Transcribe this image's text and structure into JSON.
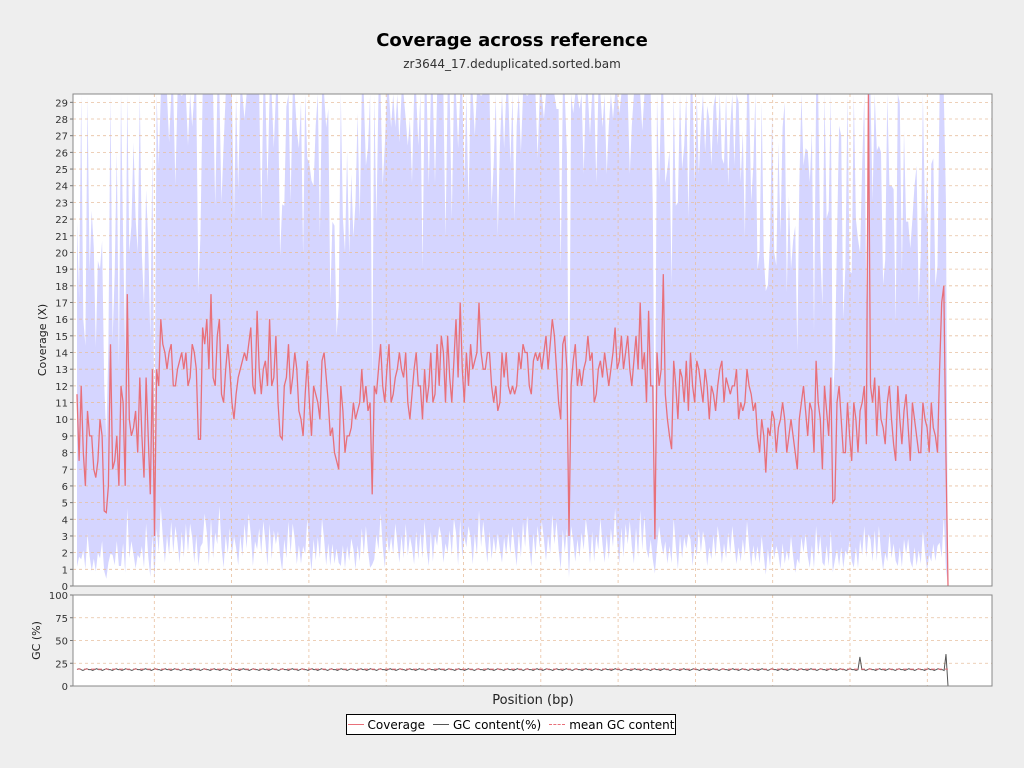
{
  "title": "Coverage across reference",
  "subtitle": "zr3644_17.deduplicated.sorted.bam",
  "colors": {
    "coverage": "#e8707a",
    "coverage_band": "#d5d5ff",
    "gc": "#555555",
    "mean_gc": "#e8707a",
    "grid": "#e8c0a0"
  },
  "chart_data": [
    {
      "type": "line",
      "ylabel": "Coverage (X)",
      "xlabel": "",
      "ylim": [
        0,
        29.5
      ],
      "yticks": [
        0,
        1,
        2,
        3,
        4,
        5,
        6,
        7,
        8,
        9,
        10,
        11,
        12,
        13,
        14,
        15,
        16,
        17,
        18,
        19,
        20,
        21,
        22,
        23,
        24,
        25,
        26,
        27,
        28,
        29
      ],
      "grid": true,
      "series": [
        {
          "name": "Coverage",
          "values": [
            11.5,
            7.5,
            12,
            8,
            6,
            10.5,
            9,
            9,
            7,
            6.5,
            7.5,
            10,
            9,
            4.5,
            4.4,
            6,
            14.5,
            7,
            7.5,
            9,
            6,
            12,
            11,
            6,
            17.5,
            10,
            9,
            9.5,
            10.5,
            8,
            12.5,
            9,
            6.5,
            12.5,
            9,
            5.5,
            13,
            3,
            13,
            12,
            16,
            14.5,
            14,
            13,
            14,
            14.5,
            12,
            12,
            13,
            13.5,
            14,
            13,
            14,
            12,
            12.5,
            14.5,
            14,
            13,
            8.8,
            8.8,
            15.5,
            14.5,
            16,
            13,
            17.5,
            12.5,
            12,
            15,
            16,
            11.5,
            11,
            13,
            14.5,
            13,
            11,
            10,
            11.5,
            12.5,
            13,
            13.5,
            14,
            13.5,
            14.5,
            15.5,
            12,
            11.5,
            16.5,
            13,
            11.5,
            13,
            13.5,
            12,
            16,
            12,
            12.5,
            15,
            11,
            9,
            8.8,
            12,
            12.5,
            14.5,
            11.5,
            12.5,
            14,
            13,
            10.5,
            10,
            9,
            11.5,
            13.5,
            11,
            9,
            12,
            11.5,
            11,
            10,
            13.5,
            14,
            12.5,
            11,
            9,
            9.5,
            8,
            7.5,
            7,
            12,
            10.5,
            8,
            9,
            9,
            9.5,
            11,
            10,
            10.5,
            11,
            13,
            11,
            12,
            10.5,
            11,
            5.5,
            12,
            11.5,
            13,
            14.5,
            12,
            11,
            13,
            14.5,
            11,
            11.5,
            12.5,
            13,
            14,
            13,
            12.5,
            14,
            11,
            10,
            11.5,
            13,
            14,
            12,
            12,
            10,
            13,
            11,
            12,
            14,
            11,
            11.5,
            14.5,
            12,
            15,
            14,
            11,
            15,
            12.5,
            11,
            13.5,
            16,
            12.5,
            17,
            13,
            11,
            14,
            12,
            14.5,
            13,
            13.5,
            14,
            17,
            14,
            13,
            13,
            14,
            14,
            12,
            11,
            12,
            10.5,
            11,
            14,
            12.5,
            14,
            12,
            11.5,
            12,
            11.5,
            12,
            14,
            13,
            14.5,
            14,
            14,
            12,
            11.5,
            13.5,
            14,
            13.5,
            14,
            13,
            14,
            15,
            13,
            14.5,
            16,
            15,
            13,
            11,
            10,
            14.5,
            15,
            13,
            3,
            12,
            13.5,
            14.5,
            12,
            13,
            12,
            13,
            13.5,
            15,
            13.5,
            14,
            11,
            11.5,
            13,
            13.5,
            12.5,
            14,
            13,
            12,
            13,
            14,
            15.5,
            13,
            13.5,
            15,
            13,
            14,
            15,
            13,
            12,
            13.5,
            15,
            13,
            17,
            13,
            14,
            11,
            16.5,
            12,
            12,
            2.8,
            14,
            12,
            13,
            18.7,
            11.5,
            10,
            9,
            8.2,
            13.5,
            12,
            10,
            13,
            12.5,
            11,
            13.5,
            10.5,
            14,
            12,
            11,
            13.5,
            13,
            12,
            11,
            13,
            12,
            10,
            12,
            11.5,
            10.5,
            12,
            13,
            13.5,
            11,
            12.5,
            12,
            11.5,
            12,
            12,
            13,
            10,
            11,
            10.5,
            11,
            13,
            12,
            11.5,
            10.5,
            11,
            9,
            8,
            10,
            9,
            6.8,
            9.5,
            9,
            10.5,
            10,
            8,
            9.5,
            10,
            11,
            10,
            8,
            9,
            10,
            9,
            8,
            7,
            10,
            11,
            12,
            10.5,
            9,
            11,
            10.5,
            8,
            13.5,
            11,
            10,
            7,
            12,
            10.5,
            9,
            12.5,
            5,
            5.2,
            11,
            12,
            10,
            8,
            8,
            11,
            9,
            7.5,
            11,
            10,
            8,
            10.5,
            11,
            12,
            8.5,
            31,
            12,
            11,
            12.5,
            9,
            12,
            10,
            9.5,
            8.5,
            11,
            12,
            10,
            8.5,
            7.5,
            12,
            10,
            8.5,
            10.5,
            11.5,
            9.5,
            7.5,
            11,
            10,
            9,
            8,
            8,
            11,
            10,
            9.5,
            8,
            11,
            9.5,
            9,
            8,
            13,
            17,
            18,
            8,
            0
          ]
        }
      ]
    },
    {
      "type": "line",
      "ylabel": "GC (%)",
      "xlabel": "Position (bp)",
      "ylim": [
        0,
        100
      ],
      "yticks": [
        0,
        25,
        50,
        75,
        100
      ],
      "grid": true,
      "series": [
        {
          "name": "GC content(%)",
          "values": [
            18,
            19,
            18,
            17,
            18,
            19,
            18,
            18,
            17,
            18,
            19,
            18,
            18,
            17,
            18,
            19,
            18,
            18,
            17,
            18,
            19,
            18,
            18,
            17,
            18,
            19,
            18,
            18,
            17,
            18,
            19,
            18,
            18,
            17,
            18,
            19,
            18,
            18,
            17,
            18,
            19,
            18,
            18,
            17,
            18,
            19,
            18,
            18,
            17,
            18,
            19,
            18,
            18,
            17,
            18,
            19,
            18,
            18,
            17,
            18,
            19,
            18,
            18,
            17,
            18,
            19,
            18,
            18,
            17,
            18,
            19,
            18,
            18,
            17,
            18,
            19,
            18,
            18,
            17,
            18,
            19,
            18,
            18,
            17,
            18,
            19,
            18,
            18,
            17,
            18,
            19,
            18,
            18,
            17,
            18,
            19,
            18,
            18,
            17,
            18,
            19,
            18,
            18,
            17,
            18,
            19,
            18,
            18,
            17,
            18,
            19,
            18,
            18,
            17,
            18,
            19,
            18,
            18,
            17,
            18,
            19,
            18,
            18,
            17,
            18,
            19,
            18,
            18,
            17,
            18,
            19,
            18,
            18,
            17,
            18,
            19,
            18,
            18,
            17,
            18,
            19,
            18,
            18,
            17,
            18,
            19,
            18,
            18,
            17,
            18,
            19,
            18,
            18,
            17,
            18,
            19,
            18,
            18,
            17,
            18,
            19,
            18,
            18,
            17,
            18,
            19,
            18,
            18,
            17,
            18,
            19,
            18,
            18,
            17,
            18,
            19,
            18,
            18,
            17,
            18,
            19,
            18,
            18,
            17,
            18,
            19,
            18,
            18,
            17,
            18,
            19,
            18,
            18,
            17,
            18,
            19,
            18,
            18,
            17,
            18,
            19,
            18,
            18,
            17,
            18,
            19,
            18,
            18,
            17,
            18,
            19,
            18,
            18,
            17,
            18,
            19,
            18,
            18,
            17,
            18,
            19,
            18,
            18,
            17,
            18,
            19,
            18,
            18,
            17,
            18,
            19,
            18,
            18,
            17,
            18,
            19,
            18,
            18,
            17,
            18,
            19,
            18,
            18,
            17,
            18,
            19,
            18,
            18,
            17,
            18,
            19,
            18,
            18,
            17,
            18,
            19,
            18,
            18,
            17,
            18,
            19,
            18,
            18,
            17,
            18,
            19,
            18,
            18,
            17,
            18,
            19,
            18,
            18,
            17,
            18,
            19,
            18,
            18,
            17,
            18,
            19,
            18,
            18,
            17,
            18,
            19,
            18,
            18,
            17,
            18,
            19,
            18,
            18,
            17,
            18,
            19,
            18,
            18,
            17,
            18,
            19,
            18,
            18,
            17,
            18,
            19,
            18,
            18,
            17,
            18,
            19,
            18,
            18,
            17,
            18,
            19,
            18,
            18,
            17,
            18,
            19,
            18,
            18,
            17,
            18,
            19,
            18,
            18,
            17,
            18,
            19,
            18,
            18,
            17,
            18,
            19,
            18,
            18,
            17,
            18,
            19,
            18,
            18,
            17,
            18,
            19,
            18,
            18,
            17,
            18,
            19,
            18,
            18,
            17,
            18,
            19,
            18,
            18,
            17,
            18,
            19,
            18,
            18,
            17,
            18,
            19,
            18,
            18,
            17,
            18,
            19,
            18,
            18,
            17,
            18,
            19,
            18,
            18,
            17,
            18,
            19,
            18,
            18,
            17,
            18,
            19,
            18,
            18,
            17,
            18,
            19,
            18,
            18,
            17,
            18,
            19,
            18,
            18,
            17,
            18,
            32,
            18,
            18,
            17,
            18,
            19,
            18,
            18,
            17,
            18,
            19,
            18,
            18,
            17,
            18,
            19,
            18,
            18,
            17,
            18,
            19,
            18,
            18,
            17,
            18,
            19,
            18,
            18,
            17,
            18,
            19,
            18,
            18,
            17,
            18,
            19,
            18,
            18,
            17,
            18,
            19,
            18,
            18,
            17,
            35,
            0
          ]
        },
        {
          "name": "mean GC content",
          "values": [
            18.5
          ]
        }
      ]
    }
  ],
  "legend": {
    "coverage": "Coverage",
    "gc": "GC content(%)",
    "mean_gc": "mean GC content"
  }
}
